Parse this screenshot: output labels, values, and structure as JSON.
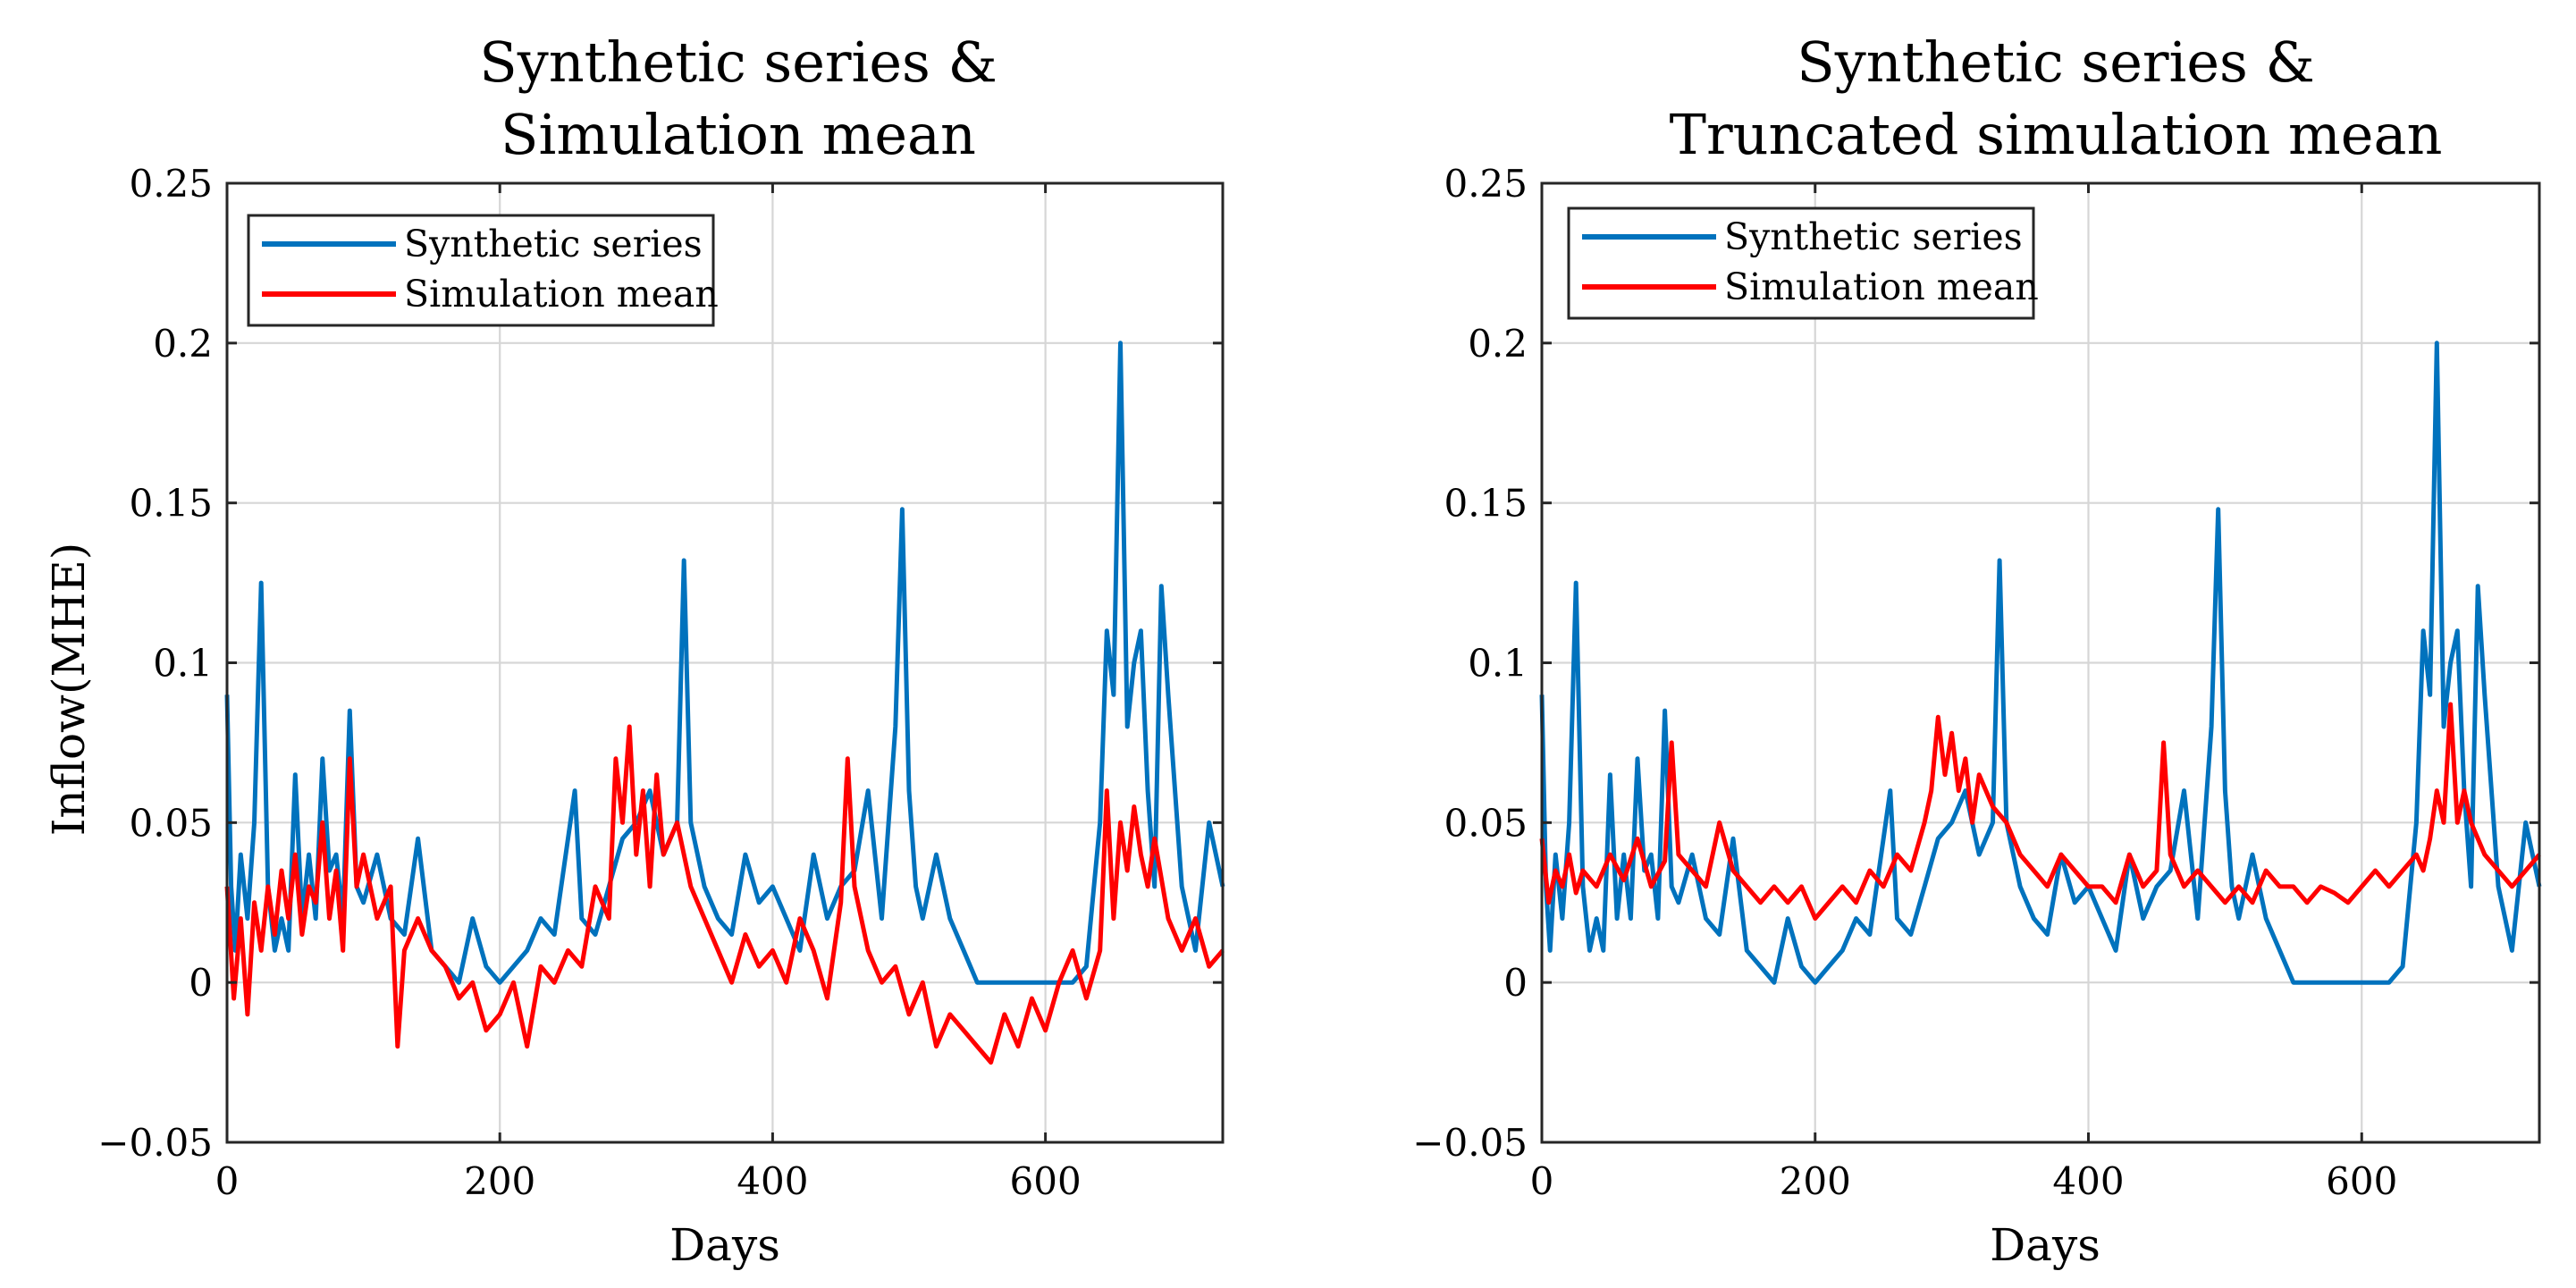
{
  "figure": {
    "colors": {
      "synthetic": "#0072BD",
      "simulation": "#FF0000"
    }
  },
  "chart_data": [
    {
      "type": "line",
      "title_lines": [
        "Synthetic series &",
        "Simulation mean"
      ],
      "xlabel": "Days",
      "ylabel": "Inflow(MHE)",
      "xlim": [
        0,
        730
      ],
      "ylim": [
        -0.05,
        0.25
      ],
      "xticks": [
        0,
        200,
        400,
        600
      ],
      "xtick_labels": [
        "0",
        "200",
        "400",
        "600"
      ],
      "yticks": [
        -0.05,
        0,
        0.05,
        0.1,
        0.15,
        0.2,
        0.25
      ],
      "ytick_labels": [
        "−0.05",
        "0",
        "0.05",
        "0.1",
        "0.15",
        "0.2",
        "0.25"
      ],
      "grid": true,
      "legend_position": "top-left",
      "series": [
        {
          "name": "Synthetic series",
          "color": "#0072BD",
          "x": [
            0,
            3,
            6,
            10,
            15,
            20,
            25,
            30,
            35,
            40,
            45,
            50,
            55,
            60,
            65,
            70,
            75,
            80,
            85,
            90,
            95,
            100,
            110,
            120,
            130,
            140,
            150,
            160,
            170,
            180,
            190,
            200,
            210,
            220,
            230,
            240,
            250,
            255,
            260,
            270,
            280,
            290,
            300,
            310,
            320,
            330,
            335,
            340,
            350,
            360,
            370,
            380,
            390,
            400,
            410,
            420,
            430,
            440,
            450,
            460,
            470,
            480,
            490,
            495,
            500,
            505,
            510,
            520,
            530,
            540,
            550,
            560,
            570,
            580,
            590,
            600,
            610,
            620,
            630,
            640,
            645,
            650,
            655,
            660,
            665,
            670,
            675,
            680,
            685,
            690,
            700,
            710,
            720,
            730
          ],
          "y": [
            0.09,
            0.03,
            0.01,
            0.04,
            0.02,
            0.05,
            0.125,
            0.03,
            0.01,
            0.02,
            0.01,
            0.065,
            0.02,
            0.04,
            0.02,
            0.07,
            0.035,
            0.04,
            0.02,
            0.085,
            0.03,
            0.025,
            0.04,
            0.02,
            0.015,
            0.045,
            0.01,
            0.005,
            0.0,
            0.02,
            0.005,
            0.0,
            0.005,
            0.01,
            0.02,
            0.015,
            0.045,
            0.06,
            0.02,
            0.015,
            0.03,
            0.045,
            0.05,
            0.06,
            0.04,
            0.05,
            0.132,
            0.05,
            0.03,
            0.02,
            0.015,
            0.04,
            0.025,
            0.03,
            0.02,
            0.01,
            0.04,
            0.02,
            0.03,
            0.035,
            0.06,
            0.02,
            0.08,
            0.148,
            0.06,
            0.03,
            0.02,
            0.04,
            0.02,
            0.01,
            0.0,
            0.0,
            0.0,
            0.0,
            0.0,
            0.0,
            0.0,
            0.0,
            0.005,
            0.05,
            0.11,
            0.09,
            0.2,
            0.08,
            0.1,
            0.11,
            0.06,
            0.03,
            0.124,
            0.09,
            0.03,
            0.01,
            0.05,
            0.03
          ]
        },
        {
          "name": "Simulation mean",
          "color": "#FF0000",
          "x": [
            0,
            5,
            10,
            15,
            20,
            25,
            30,
            35,
            40,
            45,
            50,
            55,
            60,
            65,
            70,
            75,
            80,
            85,
            90,
            95,
            100,
            110,
            120,
            125,
            130,
            140,
            150,
            160,
            170,
            180,
            190,
            200,
            210,
            220,
            230,
            240,
            250,
            260,
            270,
            280,
            285,
            290,
            295,
            300,
            305,
            310,
            315,
            320,
            330,
            340,
            350,
            360,
            370,
            380,
            390,
            400,
            410,
            420,
            430,
            440,
            450,
            455,
            460,
            470,
            480,
            490,
            500,
            510,
            520,
            530,
            540,
            550,
            560,
            570,
            580,
            590,
            600,
            610,
            620,
            630,
            640,
            645,
            650,
            655,
            660,
            665,
            670,
            675,
            680,
            690,
            700,
            710,
            720,
            730
          ],
          "y": [
            0.03,
            -0.005,
            0.02,
            -0.01,
            0.025,
            0.01,
            0.03,
            0.015,
            0.035,
            0.02,
            0.04,
            0.015,
            0.03,
            0.025,
            0.05,
            0.02,
            0.035,
            0.01,
            0.07,
            0.03,
            0.04,
            0.02,
            0.03,
            -0.02,
            0.01,
            0.02,
            0.01,
            0.005,
            -0.005,
            0.0,
            -0.015,
            -0.01,
            0.0,
            -0.02,
            0.005,
            0.0,
            0.01,
            0.005,
            0.03,
            0.02,
            0.07,
            0.05,
            0.08,
            0.04,
            0.06,
            0.03,
            0.065,
            0.04,
            0.05,
            0.03,
            0.02,
            0.01,
            0.0,
            0.015,
            0.005,
            0.01,
            0.0,
            0.02,
            0.01,
            -0.005,
            0.025,
            0.07,
            0.03,
            0.01,
            0.0,
            0.005,
            -0.01,
            0.0,
            -0.02,
            -0.01,
            -0.015,
            -0.02,
            -0.025,
            -0.01,
            -0.02,
            -0.005,
            -0.015,
            0.0,
            0.01,
            -0.005,
            0.01,
            0.06,
            0.02,
            0.05,
            0.035,
            0.055,
            0.04,
            0.03,
            0.045,
            0.02,
            0.01,
            0.02,
            0.005,
            0.01
          ]
        }
      ]
    },
    {
      "type": "line",
      "title_lines": [
        "Synthetic series &",
        "Truncated simulation mean"
      ],
      "xlabel": "Days",
      "ylabel": "",
      "xlim": [
        0,
        730
      ],
      "ylim": [
        -0.05,
        0.25
      ],
      "xticks": [
        0,
        200,
        400,
        600
      ],
      "xtick_labels": [
        "0",
        "200",
        "400",
        "600"
      ],
      "yticks": [
        -0.05,
        0,
        0.05,
        0.1,
        0.15,
        0.2,
        0.25
      ],
      "ytick_labels": [
        "−0.05",
        "0",
        "0.05",
        "0.1",
        "0.15",
        "0.2",
        "0.25"
      ],
      "grid": true,
      "legend_position": "top-left",
      "series": [
        {
          "name": "Synthetic series",
          "color": "#0072BD",
          "x": [
            0,
            3,
            6,
            10,
            15,
            20,
            25,
            30,
            35,
            40,
            45,
            50,
            55,
            60,
            65,
            70,
            75,
            80,
            85,
            90,
            95,
            100,
            110,
            120,
            130,
            140,
            150,
            160,
            170,
            180,
            190,
            200,
            210,
            220,
            230,
            240,
            250,
            255,
            260,
            270,
            280,
            290,
            300,
            310,
            320,
            330,
            335,
            340,
            350,
            360,
            370,
            380,
            390,
            400,
            410,
            420,
            430,
            440,
            450,
            460,
            470,
            480,
            490,
            495,
            500,
            505,
            510,
            520,
            530,
            540,
            550,
            560,
            570,
            580,
            590,
            600,
            610,
            620,
            630,
            640,
            645,
            650,
            655,
            660,
            665,
            670,
            675,
            680,
            685,
            690,
            700,
            710,
            720,
            730
          ],
          "y": [
            0.09,
            0.03,
            0.01,
            0.04,
            0.02,
            0.05,
            0.125,
            0.03,
            0.01,
            0.02,
            0.01,
            0.065,
            0.02,
            0.04,
            0.02,
            0.07,
            0.035,
            0.04,
            0.02,
            0.085,
            0.03,
            0.025,
            0.04,
            0.02,
            0.015,
            0.045,
            0.01,
            0.005,
            0.0,
            0.02,
            0.005,
            0.0,
            0.005,
            0.01,
            0.02,
            0.015,
            0.045,
            0.06,
            0.02,
            0.015,
            0.03,
            0.045,
            0.05,
            0.06,
            0.04,
            0.05,
            0.132,
            0.05,
            0.03,
            0.02,
            0.015,
            0.04,
            0.025,
            0.03,
            0.02,
            0.01,
            0.04,
            0.02,
            0.03,
            0.035,
            0.06,
            0.02,
            0.08,
            0.148,
            0.06,
            0.03,
            0.02,
            0.04,
            0.02,
            0.01,
            0.0,
            0.0,
            0.0,
            0.0,
            0.0,
            0.0,
            0.0,
            0.0,
            0.005,
            0.05,
            0.11,
            0.09,
            0.2,
            0.08,
            0.1,
            0.11,
            0.06,
            0.03,
            0.124,
            0.09,
            0.03,
            0.01,
            0.05,
            0.03
          ]
        },
        {
          "name": "Simulation mean",
          "color": "#FF0000",
          "x": [
            0,
            5,
            10,
            15,
            20,
            25,
            30,
            40,
            50,
            60,
            70,
            80,
            90,
            95,
            100,
            110,
            120,
            130,
            140,
            150,
            160,
            170,
            180,
            190,
            200,
            210,
            220,
            230,
            240,
            250,
            260,
            270,
            280,
            285,
            290,
            295,
            300,
            305,
            310,
            315,
            320,
            330,
            340,
            350,
            360,
            370,
            380,
            390,
            400,
            410,
            420,
            430,
            440,
            450,
            455,
            460,
            470,
            480,
            490,
            500,
            510,
            520,
            530,
            540,
            550,
            560,
            570,
            580,
            590,
            600,
            610,
            620,
            630,
            640,
            645,
            650,
            655,
            660,
            665,
            670,
            675,
            680,
            690,
            700,
            710,
            720,
            730
          ],
          "y": [
            0.045,
            0.025,
            0.035,
            0.03,
            0.04,
            0.028,
            0.035,
            0.03,
            0.04,
            0.032,
            0.045,
            0.03,
            0.038,
            0.075,
            0.04,
            0.035,
            0.03,
            0.05,
            0.035,
            0.03,
            0.025,
            0.03,
            0.025,
            0.03,
            0.02,
            0.025,
            0.03,
            0.025,
            0.035,
            0.03,
            0.04,
            0.035,
            0.05,
            0.06,
            0.083,
            0.065,
            0.078,
            0.06,
            0.07,
            0.05,
            0.065,
            0.055,
            0.05,
            0.04,
            0.035,
            0.03,
            0.04,
            0.035,
            0.03,
            0.03,
            0.025,
            0.04,
            0.03,
            0.035,
            0.075,
            0.04,
            0.03,
            0.035,
            0.03,
            0.025,
            0.03,
            0.025,
            0.035,
            0.03,
            0.03,
            0.025,
            0.03,
            0.028,
            0.025,
            0.03,
            0.035,
            0.03,
            0.035,
            0.04,
            0.035,
            0.045,
            0.06,
            0.05,
            0.087,
            0.05,
            0.06,
            0.05,
            0.04,
            0.035,
            0.03,
            0.035,
            0.04
          ]
        }
      ]
    }
  ]
}
